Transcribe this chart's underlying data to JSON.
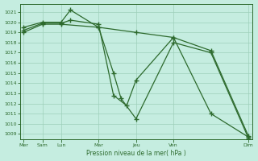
{
  "xlabel": "Pression niveau de la mer( hPa )",
  "ylim": [
    1008.5,
    1021.8
  ],
  "yticks": [
    1009,
    1010,
    1011,
    1012,
    1013,
    1014,
    1015,
    1016,
    1017,
    1018,
    1019,
    1020,
    1021
  ],
  "xtick_labels": [
    "Mer",
    "Sam",
    "Lun",
    "Mar",
    "Jeu",
    "Ven",
    "Dim"
  ],
  "xtick_positions": [
    0,
    1,
    2,
    4,
    6,
    8,
    12
  ],
  "line_color": "#2d6a2d",
  "bg_color": "#c5ede0",
  "grid_color": "#9ecfba",
  "line1_x": [
    0,
    1,
    2,
    2.5,
    4,
    4.8,
    5.2,
    6,
    8,
    10,
    12
  ],
  "line1_y": [
    1019.5,
    1020.0,
    1020.0,
    1021.2,
    1019.5,
    1015.0,
    1012.5,
    1010.5,
    1018.0,
    1017.0,
    1008.6
  ],
  "line2_x": [
    0,
    1,
    2,
    2.5,
    4,
    4.8,
    5.5,
    6,
    8,
    10,
    12
  ],
  "line2_y": [
    1019.2,
    1019.9,
    1019.9,
    1020.2,
    1019.8,
    1012.8,
    1011.8,
    1014.3,
    1018.5,
    1017.2,
    1008.8
  ],
  "line3_x": [
    0,
    1,
    2,
    4,
    6,
    8,
    10,
    12
  ],
  "line3_y": [
    1019.0,
    1019.8,
    1019.8,
    1019.5,
    1019.0,
    1018.5,
    1011.0,
    1008.7
  ]
}
